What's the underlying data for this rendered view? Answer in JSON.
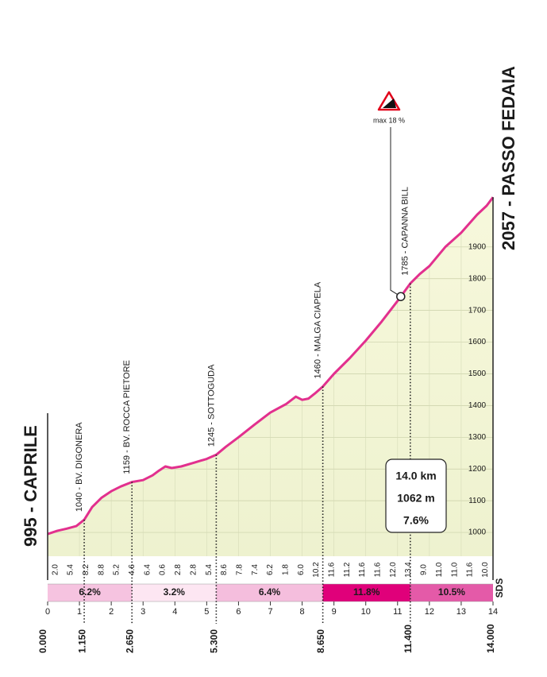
{
  "chart_data": {
    "type": "elevation-profile",
    "start": {
      "label": "995 - CAPRILE",
      "distance": {
        "value": 0,
        "label": "0.000"
      }
    },
    "finish": {
      "label": "2057 - PASSO FEDAIA",
      "distance": {
        "value": 14,
        "label": "14.000"
      }
    },
    "waypoints": [
      {
        "label": "1040 - BV. DIGONERA",
        "distance": {
          "value": 1.15,
          "label": "1.150"
        }
      },
      {
        "label": "1159 - BV. ROCCA PIETORE",
        "distance": {
          "value": 2.65,
          "label": "2.650"
        }
      },
      {
        "label": "1245 - SOTTOGUDA",
        "distance": {
          "value": 5.3,
          "label": "5.300"
        }
      },
      {
        "label": "1460 - MALGA CIAPELA",
        "distance": {
          "value": 8.65,
          "label": "8.650"
        }
      },
      {
        "label": "1785 - CAPANNA BILL",
        "distance": {
          "value": 11.4,
          "label": "11.400"
        }
      }
    ],
    "x": [
      0,
      0.3,
      0.6,
      0.9,
      1.15,
      1.4,
      1.7,
      2.0,
      2.3,
      2.65,
      3.0,
      3.3,
      3.5,
      3.7,
      3.9,
      4.2,
      4.6,
      5.0,
      5.3,
      5.6,
      6.0,
      6.5,
      7.0,
      7.5,
      7.8,
      8.0,
      8.2,
      8.4,
      8.65,
      9.0,
      9.5,
      10.0,
      10.5,
      11.0,
      11.4,
      11.7,
      12.0,
      12.5,
      13.0,
      13.5,
      13.8,
      14.0
    ],
    "values": [
      995,
      1005,
      1012,
      1020,
      1040,
      1080,
      1110,
      1130,
      1145,
      1159,
      1165,
      1180,
      1195,
      1208,
      1203,
      1208,
      1220,
      1232,
      1245,
      1270,
      1300,
      1340,
      1378,
      1405,
      1428,
      1418,
      1422,
      1438,
      1460,
      1500,
      1550,
      1605,
      1665,
      1730,
      1785,
      1815,
      1840,
      1900,
      1945,
      2002,
      2030,
      2057
    ],
    "color": "#e2308e",
    "xlim": [
      0,
      14
    ],
    "xticks": [
      0,
      1,
      2,
      3,
      4,
      5,
      6,
      7,
      8,
      9,
      10,
      11,
      12,
      13,
      14
    ],
    "ylim": [
      925,
      2100
    ],
    "yticks": [
      1000,
      1100,
      1200,
      1300,
      1400,
      1500,
      1600,
      1700,
      1800,
      1900
    ],
    "grid": true,
    "km_gradients": {
      "values": [
        2,
        5.4,
        8.2,
        8.8,
        5.2,
        4.6,
        6.4,
        0.6,
        2.8,
        2.8,
        5.4,
        8.6,
        7.8,
        7.4,
        6.2,
        1.8,
        6,
        10.2,
        11.6,
        11.2,
        11.6,
        11.6,
        12,
        13.4,
        9,
        11,
        11,
        11.6,
        10
      ],
      "value_labels": [
        "2.0",
        "5.4",
        "8.2",
        "8.8",
        "5.2",
        "4.6",
        "6.4",
        "0.6",
        "2.8",
        "2.8",
        "5.4",
        "8.6",
        "7.8",
        "7.4",
        "6.2",
        "1.8",
        "6.0",
        "10.2",
        "11.6",
        "11.2",
        "11.6",
        "11.6",
        "12.0",
        "13.4",
        "9.0",
        "11.0",
        "11.0",
        "11.6",
        "10.0"
      ]
    },
    "segments": [
      {
        "start": 0,
        "end": 2.65,
        "value": 6.2,
        "label": "6.2%",
        "color": "#f6c3e0",
        "text_color": "#1a1a1a"
      },
      {
        "start": 2.65,
        "end": 5.3,
        "value": 3.2,
        "label": "3.2%",
        "color": "#fde6f2",
        "text_color": "#1a1a1a"
      },
      {
        "start": 5.3,
        "end": 8.65,
        "value": 6.4,
        "label": "6.4%",
        "color": "#f5bedd",
        "text_color": "#1a1a1a"
      },
      {
        "start": 8.65,
        "end": 11.4,
        "value": 11.8,
        "label": "11.8%",
        "color": "#e0007a",
        "text_color": "#ffffff"
      },
      {
        "start": 11.4,
        "end": 14,
        "value": 10.5,
        "label": "10.5%",
        "color": "#e45aa8",
        "text_color": "#ffffff"
      }
    ],
    "summary": {
      "distance": "14.0 km",
      "climb": "1062 m",
      "gradient": "7.6%"
    },
    "max_gradient": {
      "label": "max 18 %",
      "x": 11.1
    },
    "logo": "SDS"
  }
}
